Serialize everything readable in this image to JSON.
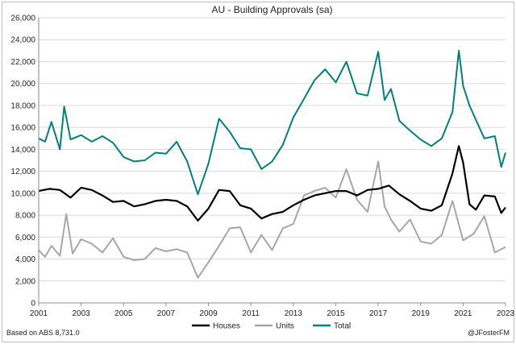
{
  "chart_data": {
    "type": "line",
    "title": "AU - Building Approvals (sa)",
    "xlabel": "",
    "ylabel": "",
    "ylim": [
      0,
      26000
    ],
    "xlim": [
      2001,
      2023
    ],
    "grid": true,
    "legend_position": "bottom-center",
    "y_ticks": [
      "0",
      "2,000",
      "4,000",
      "6,000",
      "8,000",
      "10,000",
      "12,000",
      "14,000",
      "16,000",
      "18,000",
      "20,000",
      "22,000",
      "24,000",
      "26,000"
    ],
    "x_ticks": [
      "2001",
      "2003",
      "2005",
      "2007",
      "2009",
      "2011",
      "2013",
      "2015",
      "2017",
      "2019",
      "2021",
      "2023"
    ],
    "series": [
      {
        "name": "Houses",
        "color": "#000000",
        "x": [
          2001.0,
          2001.5,
          2002.0,
          2002.5,
          2003.0,
          2003.5,
          2004.0,
          2004.5,
          2005.0,
          2005.5,
          2006.0,
          2006.5,
          2007.0,
          2007.5,
          2008.0,
          2008.5,
          2009.0,
          2009.5,
          2010.0,
          2010.5,
          2011.0,
          2011.5,
          2012.0,
          2012.5,
          2013.0,
          2013.5,
          2014.0,
          2014.5,
          2015.0,
          2015.5,
          2016.0,
          2016.5,
          2017.0,
          2017.5,
          2018.0,
          2018.5,
          2019.0,
          2019.5,
          2020.0,
          2020.5,
          2020.8,
          2021.0,
          2021.3,
          2021.6,
          2022.0,
          2022.5,
          2022.8,
          2023.0
        ],
        "values": [
          10200,
          10400,
          10300,
          9600,
          10500,
          10300,
          9800,
          9200,
          9300,
          8800,
          9000,
          9300,
          9400,
          9300,
          8800,
          7500,
          8600,
          10300,
          10200,
          8900,
          8600,
          7700,
          8100,
          8300,
          8900,
          9400,
          9800,
          10000,
          10200,
          10200,
          9800,
          10300,
          10400,
          10700,
          9900,
          9300,
          8600,
          8400,
          8900,
          11800,
          14300,
          12800,
          9000,
          8500,
          9800,
          9700,
          8200,
          8700
        ]
      },
      {
        "name": "Units",
        "color": "#a6a6a6",
        "x": [
          2001.0,
          2001.3,
          2001.6,
          2002.0,
          2002.3,
          2002.6,
          2003.0,
          2003.5,
          2004.0,
          2004.5,
          2005.0,
          2005.5,
          2006.0,
          2006.5,
          2007.0,
          2007.5,
          2008.0,
          2008.5,
          2009.0,
          2009.5,
          2010.0,
          2010.5,
          2011.0,
          2011.5,
          2012.0,
          2012.5,
          2013.0,
          2013.5,
          2014.0,
          2014.5,
          2015.0,
          2015.5,
          2016.0,
          2016.5,
          2017.0,
          2017.3,
          2017.6,
          2018.0,
          2018.5,
          2019.0,
          2019.5,
          2020.0,
          2020.5,
          2021.0,
          2021.5,
          2022.0,
          2022.5,
          2023.0
        ],
        "values": [
          4800,
          4200,
          5200,
          4300,
          8100,
          4500,
          5800,
          5400,
          4600,
          5900,
          4200,
          3900,
          4000,
          5000,
          4700,
          4900,
          4600,
          2300,
          3700,
          5200,
          6800,
          6900,
          4600,
          6200,
          4800,
          6800,
          7200,
          9800,
          10200,
          10500,
          9600,
          12200,
          9400,
          8300,
          12900,
          8800,
          7600,
          6500,
          7600,
          5600,
          5400,
          6200,
          9300,
          5700,
          6300,
          7900,
          4600,
          5100
        ]
      },
      {
        "name": "Total",
        "color": "#00807f",
        "x": [
          2001.0,
          2001.3,
          2001.6,
          2002.0,
          2002.2,
          2002.5,
          2003.0,
          2003.5,
          2004.0,
          2004.5,
          2005.0,
          2005.5,
          2006.0,
          2006.5,
          2007.0,
          2007.5,
          2008.0,
          2008.5,
          2009.0,
          2009.5,
          2010.0,
          2010.5,
          2011.0,
          2011.5,
          2012.0,
          2012.5,
          2013.0,
          2013.5,
          2014.0,
          2014.5,
          2015.0,
          2015.5,
          2016.0,
          2016.5,
          2017.0,
          2017.3,
          2017.6,
          2018.0,
          2018.5,
          2019.0,
          2019.5,
          2020.0,
          2020.5,
          2020.8,
          2021.0,
          2021.3,
          2021.6,
          2022.0,
          2022.5,
          2022.8,
          2023.0
        ],
        "values": [
          15000,
          14700,
          16500,
          14000,
          17900,
          14900,
          15300,
          14700,
          15200,
          14600,
          13300,
          12900,
          13000,
          13700,
          13600,
          14700,
          12900,
          9900,
          12700,
          16800,
          15600,
          14100,
          14000,
          12200,
          12900,
          14400,
          16900,
          18600,
          20300,
          21300,
          20100,
          22000,
          19100,
          18900,
          22900,
          18500,
          19500,
          16600,
          15700,
          14900,
          14300,
          15000,
          17400,
          23000,
          19800,
          18000,
          16700,
          15000,
          15200,
          12400,
          13700
        ]
      }
    ]
  },
  "source_note": "Based on ABS 8,731.0",
  "attribution": "@JFosterFM"
}
